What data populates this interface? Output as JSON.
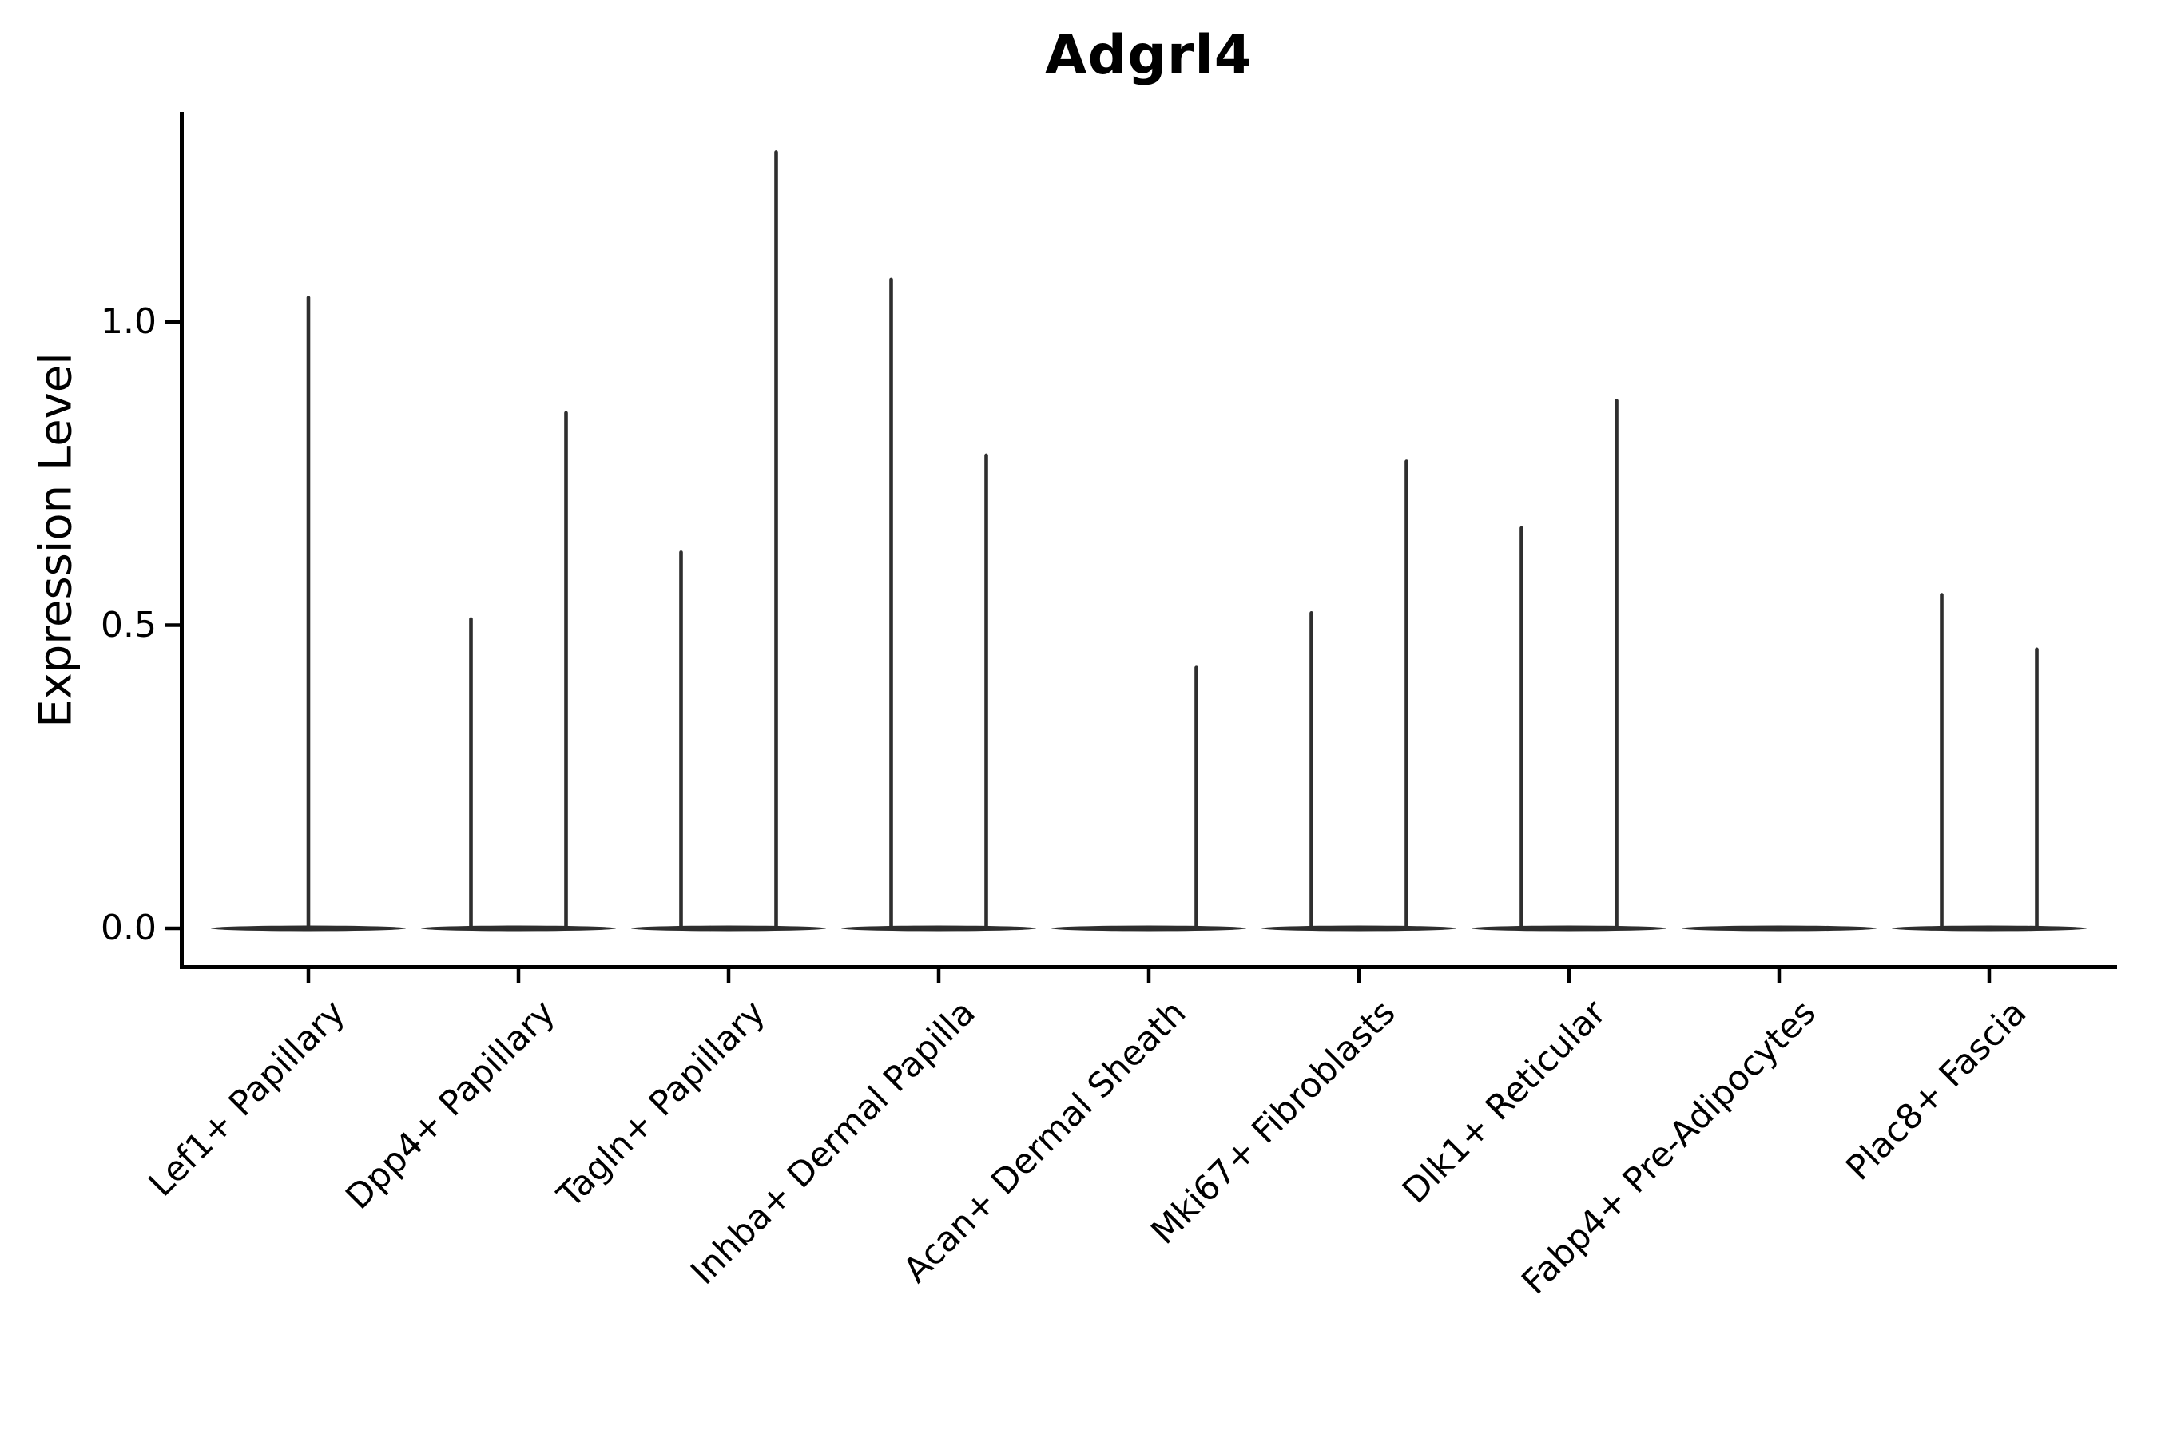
{
  "title": "Adgrl4",
  "chart_data": {
    "type": "violin",
    "title": "Adgrl4",
    "xlabel": "",
    "ylabel": "Expression Level",
    "ytick_labels": [
      "0.0",
      "0.5",
      "1.0"
    ],
    "ytick_values": [
      0.0,
      0.5,
      1.0
    ],
    "ylim": [
      -0.06,
      1.35
    ],
    "grid": false,
    "legend": "none",
    "description": "Needle-thin violin plot of Adgrl4 expression per fibroblast cell-type cluster; each category shows a flat density bar at 0 with up to two thin spikes reaching the maximum expression of its sub-violins.",
    "categories": [
      "Lef1+ Papillary",
      "Dpp4+ Papillary",
      "Tagln+ Papillary",
      "Inhba+ Dermal Papilla",
      "Acan+ Dermal Sheath",
      "Mki67+ Fibroblasts",
      "Dlk1+ Reticular",
      "Fabp4+ Pre-Adipocytes",
      "Plac8+ Fascia"
    ],
    "violins": [
      {
        "category": "Lef1+ Papillary",
        "baseline_value": 0.0,
        "spikes": [
          {
            "position": "center",
            "max_expression": 1.04
          }
        ]
      },
      {
        "category": "Dpp4+ Papillary",
        "baseline_value": 0.0,
        "spikes": [
          {
            "position": "left",
            "max_expression": 0.51
          },
          {
            "position": "right",
            "max_expression": 0.85
          }
        ]
      },
      {
        "category": "Tagln+ Papillary",
        "baseline_value": 0.0,
        "spikes": [
          {
            "position": "left",
            "max_expression": 0.62
          },
          {
            "position": "right",
            "max_expression": 1.28
          }
        ]
      },
      {
        "category": "Inhba+ Dermal Papilla",
        "baseline_value": 0.0,
        "spikes": [
          {
            "position": "left",
            "max_expression": 1.07
          },
          {
            "position": "right",
            "max_expression": 0.78
          }
        ]
      },
      {
        "category": "Acan+ Dermal Sheath",
        "baseline_value": 0.0,
        "spikes": [
          {
            "position": "right",
            "max_expression": 0.43
          }
        ]
      },
      {
        "category": "Mki67+ Fibroblasts",
        "baseline_value": 0.0,
        "spikes": [
          {
            "position": "left",
            "max_expression": 0.52
          },
          {
            "position": "right",
            "max_expression": 0.77
          }
        ]
      },
      {
        "category": "Dlk1+ Reticular",
        "baseline_value": 0.0,
        "spikes": [
          {
            "position": "left",
            "max_expression": 0.66
          },
          {
            "position": "right",
            "max_expression": 0.87
          }
        ]
      },
      {
        "category": "Fabp4+ Pre-Adipocytes",
        "baseline_value": 0.0,
        "spikes": []
      },
      {
        "category": "Plac8+ Fascia",
        "baseline_value": 0.0,
        "spikes": [
          {
            "position": "left",
            "max_expression": 0.55
          },
          {
            "position": "right",
            "max_expression": 0.46
          }
        ]
      }
    ],
    "colors": {
      "violin": "#2e2e2e",
      "axis": "#000000",
      "text": "#000000",
      "background": "#ffffff"
    }
  }
}
